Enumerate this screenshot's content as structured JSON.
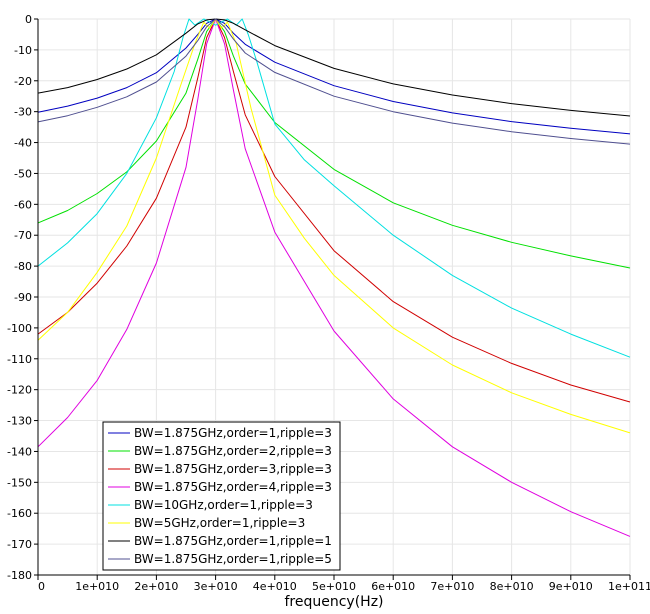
{
  "chart_data": {
    "type": "line",
    "title": "",
    "xlabel": "frequency(Hz)",
    "ylabel": "",
    "xlim": [
      0,
      100000000000
    ],
    "ylim": [
      -180,
      0
    ],
    "grid": true,
    "legend_position": "bottom-left",
    "x_ticks": [
      {
        "value": 0,
        "label": "0"
      },
      {
        "value": 10000000000,
        "label": "1e+010"
      },
      {
        "value": 20000000000,
        "label": "2e+010"
      },
      {
        "value": 30000000000,
        "label": "3e+010"
      },
      {
        "value": 40000000000,
        "label": "4e+010"
      },
      {
        "value": 50000000000,
        "label": "5e+010"
      },
      {
        "value": 60000000000,
        "label": "6e+010"
      },
      {
        "value": 70000000000,
        "label": "7e+010"
      },
      {
        "value": 80000000000,
        "label": "8e+010"
      },
      {
        "value": 90000000000,
        "label": "9e+010"
      },
      {
        "value": 100000000000,
        "label": "1e+011"
      }
    ],
    "y_ticks": [
      {
        "value": 0,
        "label": "0"
      },
      {
        "value": -10,
        "label": "-10"
      },
      {
        "value": -20,
        "label": "-20"
      },
      {
        "value": -30,
        "label": "-30"
      },
      {
        "value": -40,
        "label": "-40"
      },
      {
        "value": -50,
        "label": "-50"
      },
      {
        "value": -60,
        "label": "-60"
      },
      {
        "value": -70,
        "label": "-70"
      },
      {
        "value": -80,
        "label": "-80"
      },
      {
        "value": -90,
        "label": "-90"
      },
      {
        "value": -100,
        "label": "-100"
      },
      {
        "value": -110,
        "label": "-110"
      },
      {
        "value": -120,
        "label": "-120"
      },
      {
        "value": -130,
        "label": "-130"
      },
      {
        "value": -140,
        "label": "-140"
      },
      {
        "value": -150,
        "label": "-150"
      },
      {
        "value": -160,
        "label": "-160"
      },
      {
        "value": -170,
        "label": "-170"
      },
      {
        "value": -180,
        "label": "-180"
      }
    ],
    "series": [
      {
        "name": "BW=1.875GHz,order=1,ripple=3",
        "color": "#0000c0",
        "x": [
          0,
          5000000000,
          10000000000,
          15000000000,
          20000000000,
          25000000000,
          27000000000,
          28500000000,
          30000000000,
          31500000000,
          33000000000,
          35000000000,
          40000000000,
          50000000000,
          60000000000,
          70000000000,
          80000000000,
          90000000000,
          100000000000
        ],
        "y": [
          -30.2,
          -28.2,
          -25.6,
          -22.2,
          -17.4,
          -9.4,
          -5.0,
          -1.4,
          0,
          -1.4,
          -4.6,
          -8.2,
          -14.0,
          -21.6,
          -26.7,
          -30.4,
          -33.2,
          -35.4,
          -37.2
        ]
      },
      {
        "name": "BW=1.875GHz,order=2,ripple=3",
        "color": "#00e000",
        "x": [
          0,
          5000000000,
          10000000000,
          15000000000,
          20000000000,
          25000000000,
          27000000000,
          28500000000,
          30000000000,
          31500000000,
          33000000000,
          35000000000,
          40000000000,
          50000000000,
          60000000000,
          70000000000,
          80000000000,
          90000000000,
          100000000000
        ],
        "y": [
          -66.0,
          -62.0,
          -56.5,
          -49.5,
          -39.5,
          -24.0,
          -13.0,
          -4.0,
          0,
          -4.0,
          -12.0,
          -21.0,
          -33.5,
          -48.7,
          -59.5,
          -66.8,
          -72.3,
          -76.7,
          -80.6
        ]
      },
      {
        "name": "BW=1.875GHz,order=3,ripple=3",
        "color": "#d00000",
        "x": [
          0,
          5000000000,
          10000000000,
          15000000000,
          20000000000,
          25000000000,
          27000000000,
          28500000000,
          30000000000,
          31500000000,
          33000000000,
          35000000000,
          40000000000,
          50000000000,
          60000000000,
          70000000000,
          80000000000,
          90000000000,
          100000000000
        ],
        "y": [
          -102.0,
          -95.0,
          -85.5,
          -73.5,
          -58.0,
          -35.0,
          -19.0,
          -6.0,
          0,
          -6.0,
          -17.0,
          -31.0,
          -51.0,
          -75.0,
          -91.5,
          -103.0,
          -111.5,
          -118.5,
          -124.0
        ]
      },
      {
        "name": "BW=1.875GHz,order=4,ripple=3",
        "color": "#e000e0",
        "x": [
          0,
          5000000000,
          10000000000,
          15000000000,
          20000000000,
          25000000000,
          27000000000,
          28500000000,
          30000000000,
          31500000000,
          33000000000,
          35000000000,
          40000000000,
          50000000000,
          60000000000,
          70000000000,
          80000000000,
          90000000000,
          100000000000
        ],
        "y": [
          -138.5,
          -129.0,
          -117.0,
          -100.5,
          -79.0,
          -48.0,
          -26.0,
          -8.0,
          0,
          -8.0,
          -23.0,
          -42.0,
          -69.0,
          -101.0,
          -123.0,
          -138.5,
          -150.0,
          -159.5,
          -167.5
        ]
      },
      {
        "name": "BW=10GHz,order=1,ripple=3",
        "color": "#00e0e0",
        "x": [
          0,
          5000000000,
          10000000000,
          15000000000,
          20000000000,
          23000000000,
          24500000000,
          25500000000,
          26500000000,
          28000000000,
          30000000000,
          32000000000,
          33500000000,
          34500000000,
          35500000000,
          37000000000,
          40000000000,
          45000000000,
          50000000000,
          60000000000,
          70000000000,
          80000000000,
          90000000000,
          100000000000
        ],
        "y": [
          -80.0,
          -72.5,
          -63.0,
          -50.0,
          -32.0,
          -17.0,
          -6.0,
          0,
          -2.0,
          0,
          -2.0,
          0,
          -2.0,
          0,
          -5.0,
          -14.0,
          -34.0,
          -45.6,
          -54.0,
          -70.0,
          -83.0,
          -93.6,
          -102.0,
          -109.5
        ]
      },
      {
        "name": "BW=5GHz,order=1,ripple=3",
        "color": "#ffff00",
        "x": [
          0,
          5000000000,
          10000000000,
          15000000000,
          20000000000,
          24000000000,
          26500000000,
          28000000000,
          29000000000,
          30000000000,
          31000000000,
          32000000000,
          33500000000,
          36000000000,
          40000000000,
          45000000000,
          50000000000,
          60000000000,
          70000000000,
          80000000000,
          90000000000,
          100000000000
        ],
        "y": [
          -104.0,
          -95.0,
          -82.0,
          -67.0,
          -45.0,
          -22.0,
          -8.0,
          -1.0,
          -3.0,
          0,
          -3.0,
          -1.0,
          -8.0,
          -29.0,
          -57.0,
          -71.0,
          -83.0,
          -100.0,
          -112.0,
          -121.0,
          -128.0,
          -134.0
        ]
      },
      {
        "name": "BW=1.875GHz,order=1,ripple=1",
        "color": "#000000",
        "x": [
          0,
          5000000000,
          10000000000,
          15000000000,
          20000000000,
          25000000000,
          27000000000,
          28500000000,
          30000000000,
          31500000000,
          33000000000,
          35000000000,
          40000000000,
          50000000000,
          60000000000,
          70000000000,
          80000000000,
          90000000000,
          100000000000
        ],
        "y": [
          -24.0,
          -22.2,
          -19.6,
          -16.2,
          -11.6,
          -4.6,
          -1.6,
          -0.3,
          0,
          -0.3,
          -1.4,
          -3.5,
          -8.6,
          -16.0,
          -21.0,
          -24.6,
          -27.4,
          -29.6,
          -31.4
        ]
      },
      {
        "name": "BW=1.875GHz,order=1,ripple=5",
        "color": "#505090",
        "x": [
          0,
          5000000000,
          10000000000,
          15000000000,
          20000000000,
          25000000000,
          27000000000,
          28500000000,
          30000000000,
          31500000000,
          33000000000,
          35000000000,
          40000000000,
          50000000000,
          60000000000,
          70000000000,
          80000000000,
          90000000000,
          100000000000
        ],
        "y": [
          -33.3,
          -31.3,
          -28.6,
          -25.2,
          -20.4,
          -12.0,
          -7.0,
          -2.5,
          0,
          -2.5,
          -6.5,
          -11.0,
          -17.3,
          -25.0,
          -30.0,
          -33.7,
          -36.5,
          -38.7,
          -40.5
        ]
      }
    ]
  }
}
